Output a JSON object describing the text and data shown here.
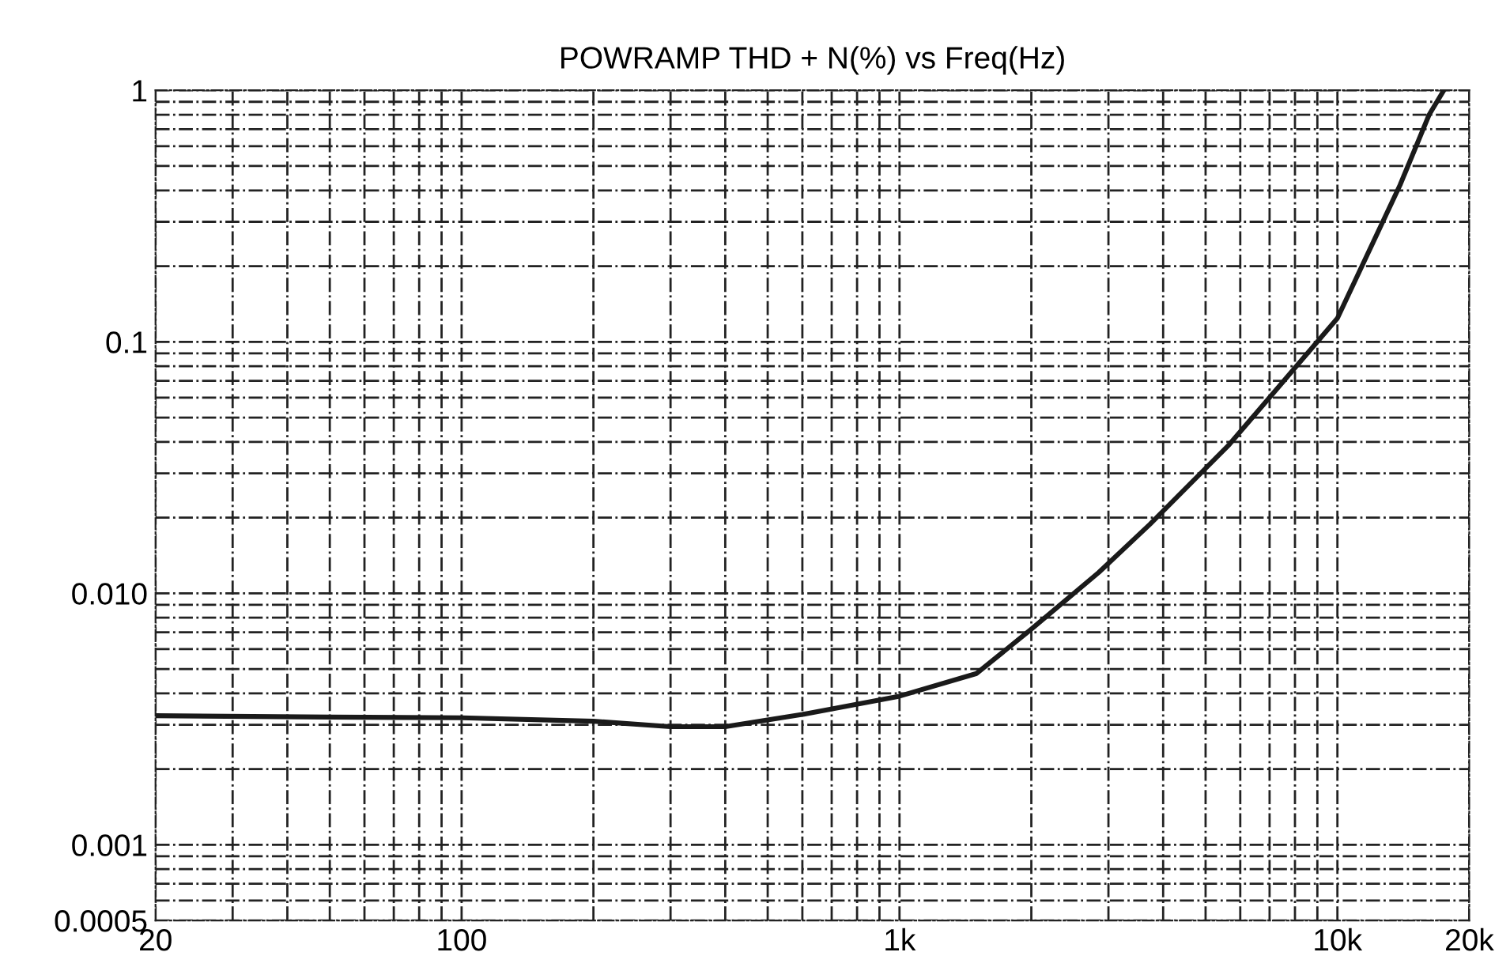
{
  "chart_data": {
    "type": "line",
    "title": "POWRAMP THD + N(%) vs Freq(Hz)",
    "series": [
      {
        "color": "#1a1a1a",
        "x": [
          20,
          50,
          100,
          200,
          300,
          400,
          600,
          1000,
          1500,
          2000,
          2850,
          3730,
          5660,
          10000,
          13900,
          16200,
          17500
        ],
        "values": [
          0.00326,
          0.00322,
          0.0032,
          0.0031,
          0.00295,
          0.00295,
          0.0033,
          0.0039,
          0.0048,
          0.0072,
          0.0121,
          0.0188,
          0.039,
          0.124,
          0.42,
          0.8,
          1.0
        ]
      }
    ],
    "log": "xy",
    "xlim": [
      20,
      20000
    ],
    "ylim": [
      0.0005,
      1
    ],
    "xticks": [
      20,
      100,
      {
        "value": 1000,
        "label": "1k"
      },
      {
        "value": 10000,
        "label": "10k"
      },
      {
        "value": 20000,
        "label": "20k"
      }
    ],
    "yticks": [
      0.0005,
      0.001,
      {
        "value": 0.01,
        "label": "0.010"
      },
      0.1,
      1
    ],
    "grid": true,
    "line_style": "solid",
    "marker": "none"
  }
}
